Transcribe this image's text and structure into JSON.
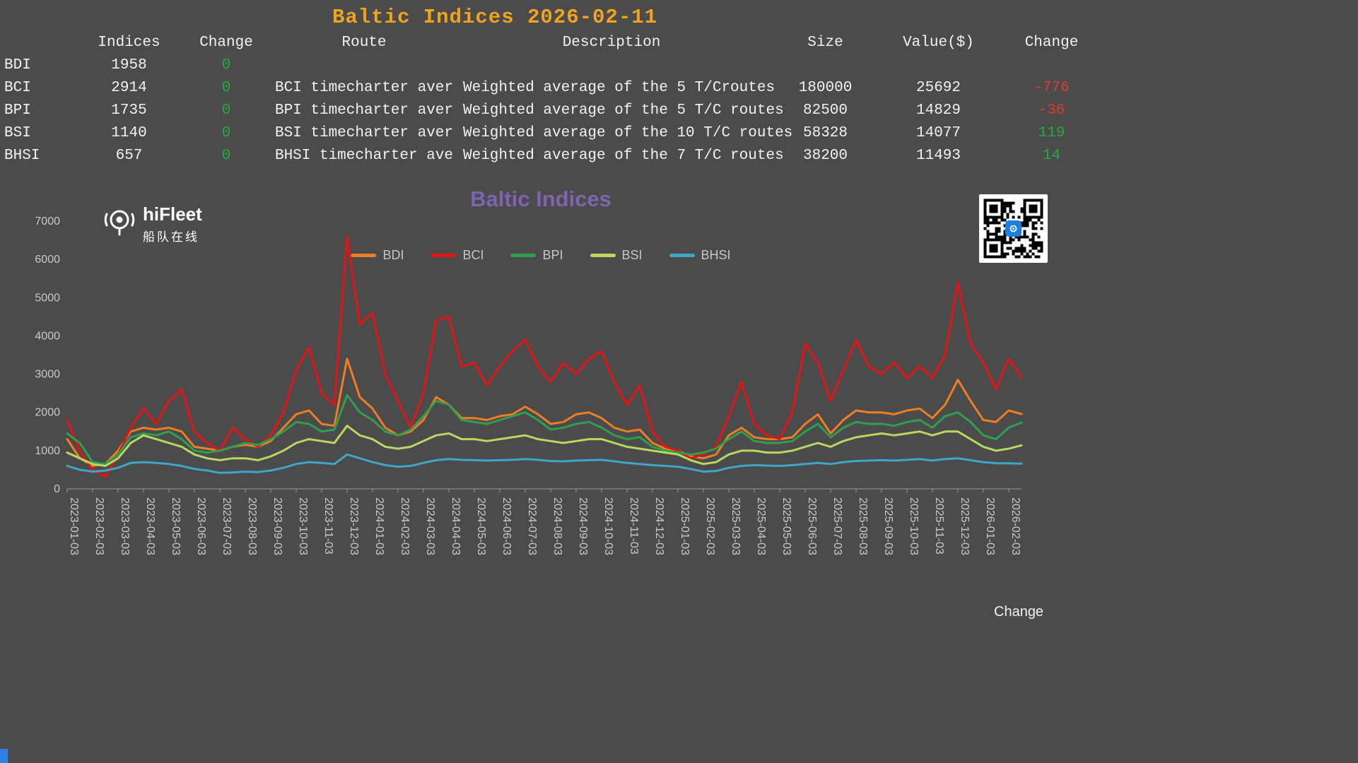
{
  "header": {
    "title": "Baltic Indices 2026-02-11",
    "title_color": "#f0a41e"
  },
  "table": {
    "columns": [
      "Indices",
      "Change",
      "Route",
      "Description",
      "Size",
      "Value($)",
      "Change"
    ],
    "rows": [
      {
        "name": "BDI",
        "indices": "1958",
        "change": "0",
        "route": "",
        "description": "",
        "size": "",
        "value": "",
        "delta": ""
      },
      {
        "name": "BCI",
        "indices": "2914",
        "change": "0",
        "route": "BCI timecharter aver",
        "description": "Weighted average of the 5 T/Croutes",
        "size": "180000",
        "value": "25692",
        "delta": "-776"
      },
      {
        "name": "BPI",
        "indices": "1735",
        "change": "0",
        "route": "BPI timecharter aver",
        "description": "Weighted average of the 5 T/C routes",
        "size": "82500",
        "value": "14829",
        "delta": "-36"
      },
      {
        "name": "BSI",
        "indices": "1140",
        "change": "0",
        "route": "BSI timecharter aver",
        "description": "Weighted average of the 10 T/C routes",
        "size": "58328",
        "value": "14077",
        "delta": "119"
      },
      {
        "name": "BHSI",
        "indices": "657",
        "change": "0",
        "route": "BHSI timecharter ave",
        "description": "Weighted average of the 7 T/C routes",
        "size": "38200",
        "value": "11493",
        "delta": "14"
      }
    ],
    "positive_color": "#27a844",
    "negative_color": "#e03a2f"
  },
  "chart": {
    "title": "Baltic Indices",
    "title_color": "#7e64b0",
    "brand": "hiFleet",
    "brand_cn": "船队在线",
    "footer_label": "Change"
  },
  "chart_data": {
    "type": "line",
    "title": "Baltic Indices",
    "ylim": [
      0,
      7000
    ],
    "yticks": [
      0,
      1000,
      2000,
      3000,
      4000,
      5000,
      6000,
      7000
    ],
    "grid": false,
    "legend_position": "top",
    "points_per_month": 2,
    "categories": [
      "2023-01-03",
      "2023-02-03",
      "2023-03-03",
      "2023-04-03",
      "2023-05-03",
      "2023-06-03",
      "2023-07-03",
      "2023-08-03",
      "2023-09-03",
      "2023-10-03",
      "2023-11-03",
      "2023-12-03",
      "2024-01-03",
      "2024-02-03",
      "2024-03-03",
      "2024-04-03",
      "2024-05-03",
      "2024-06-03",
      "2024-07-03",
      "2024-08-03",
      "2024-09-03",
      "2024-10-03",
      "2024-11-03",
      "2024-12-03",
      "2025-01-03",
      "2025-02-03",
      "2025-03-03",
      "2025-04-03",
      "2025-05-03",
      "2025-06-03",
      "2025-07-03",
      "2025-08-03",
      "2025-09-03",
      "2025-10-03",
      "2025-11-03",
      "2025-12-03",
      "2026-01-03",
      "2026-02-03"
    ],
    "series": [
      {
        "name": "BDI",
        "color": "#ee7d23",
        "values": [
          1300,
          800,
          600,
          650,
          1000,
          1500,
          1600,
          1550,
          1600,
          1500,
          1100,
          1050,
          1000,
          1100,
          1150,
          1100,
          1250,
          1600,
          1950,
          2050,
          1700,
          1650,
          3400,
          2400,
          2100,
          1600,
          1400,
          1500,
          1800,
          2400,
          2200,
          1850,
          1850,
          1800,
          1900,
          1950,
          2150,
          1950,
          1700,
          1750,
          1950,
          2000,
          1850,
          1600,
          1500,
          1550,
          1200,
          1050,
          1000,
          850,
          800,
          900,
          1400,
          1600,
          1350,
          1300,
          1300,
          1350,
          1700,
          1950,
          1450,
          1800,
          2050,
          2000,
          2000,
          1950,
          2050,
          2100,
          1850,
          2200,
          2850,
          2300,
          1800,
          1750,
          2050,
          1958
        ]
      },
      {
        "name": "BCI",
        "color": "#e51414",
        "values": [
          1800,
          1000,
          500,
          320,
          900,
          1600,
          2100,
          1700,
          2300,
          2600,
          1500,
          1200,
          1000,
          1600,
          1300,
          1100,
          1400,
          2000,
          3100,
          3700,
          2500,
          2200,
          6600,
          4300,
          4600,
          3000,
          2300,
          1600,
          2500,
          4400,
          4500,
          3200,
          3300,
          2700,
          3200,
          3600,
          3900,
          3200,
          2800,
          3300,
          3000,
          3400,
          3600,
          2800,
          2200,
          2700,
          1500,
          1100,
          1000,
          800,
          900,
          1100,
          1900,
          2800,
          1700,
          1400,
          1300,
          2000,
          3800,
          3300,
          2300,
          3100,
          3900,
          3200,
          3000,
          3300,
          2900,
          3200,
          2900,
          3500,
          5400,
          3800,
          3300,
          2600,
          3400,
          2914
        ]
      },
      {
        "name": "BPI",
        "color": "#2f9e4f",
        "values": [
          1450,
          1200,
          700,
          650,
          900,
          1350,
          1450,
          1400,
          1500,
          1300,
          1000,
          950,
          1000,
          1100,
          1200,
          1150,
          1300,
          1500,
          1750,
          1700,
          1500,
          1550,
          2450,
          2000,
          1800,
          1500,
          1400,
          1550,
          1900,
          2300,
          2200,
          1800,
          1750,
          1700,
          1800,
          1900,
          2000,
          1800,
          1550,
          1600,
          1700,
          1750,
          1600,
          1400,
          1300,
          1350,
          1100,
          1000,
          950,
          900,
          950,
          1050,
          1300,
          1500,
          1250,
          1200,
          1200,
          1250,
          1500,
          1700,
          1350,
          1600,
          1750,
          1700,
          1700,
          1650,
          1750,
          1800,
          1600,
          1900,
          2000,
          1750,
          1400,
          1300,
          1600,
          1735
        ]
      },
      {
        "name": "BSI",
        "color": "#b9d85f",
        "values": [
          950,
          800,
          650,
          600,
          800,
          1200,
          1400,
          1300,
          1200,
          1100,
          900,
          800,
          750,
          800,
          800,
          750,
          850,
          1000,
          1200,
          1300,
          1250,
          1200,
          1650,
          1400,
          1300,
          1100,
          1050,
          1100,
          1250,
          1400,
          1450,
          1300,
          1300,
          1250,
          1300,
          1350,
          1400,
          1300,
          1250,
          1200,
          1250,
          1300,
          1300,
          1200,
          1100,
          1050,
          1000,
          950,
          900,
          750,
          650,
          700,
          900,
          1000,
          1000,
          950,
          950,
          1000,
          1100,
          1200,
          1100,
          1250,
          1350,
          1400,
          1450,
          1400,
          1450,
          1500,
          1400,
          1500,
          1500,
          1300,
          1100,
          1000,
          1050,
          1140
        ]
      },
      {
        "name": "BHSI",
        "color": "#3fa6c8",
        "values": [
          600,
          500,
          450,
          480,
          550,
          680,
          700,
          680,
          650,
          600,
          520,
          480,
          420,
          430,
          450,
          440,
          480,
          550,
          650,
          700,
          680,
          650,
          900,
          800,
          700,
          620,
          580,
          600,
          680,
          750,
          780,
          760,
          750,
          740,
          750,
          760,
          780,
          760,
          730,
          720,
          740,
          750,
          760,
          720,
          680,
          650,
          620,
          600,
          580,
          520,
          450,
          470,
          550,
          600,
          620,
          610,
          600,
          620,
          650,
          680,
          650,
          700,
          730,
          740,
          750,
          740,
          760,
          780,
          740,
          780,
          800,
          750,
          700,
          670,
          670,
          657
        ]
      }
    ]
  }
}
